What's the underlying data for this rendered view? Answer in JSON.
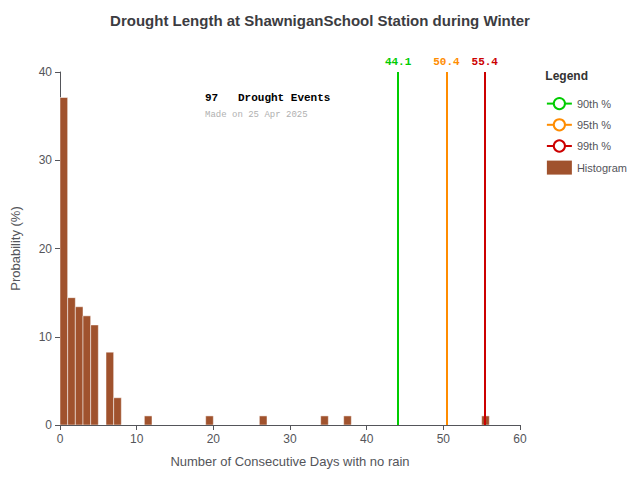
{
  "chart_data": {
    "type": "histogram",
    "title": "Drought Length at ShawniganSchool Station during Winter",
    "xlabel": "Number of Consecutive Days with no rain",
    "ylabel": "Probability (%)",
    "xlim": [
      0,
      60
    ],
    "ylim": [
      0,
      40
    ],
    "xticks": [
      0,
      10,
      20,
      30,
      40,
      50,
      60
    ],
    "yticks": [
      0,
      10,
      20,
      30,
      40
    ],
    "grid": false,
    "legend": "upper right",
    "legend_title": "Legend",
    "bins": [
      0,
      1,
      2,
      3,
      4,
      5,
      6,
      7,
      8,
      9,
      10,
      11,
      12,
      13,
      14,
      15,
      16,
      17,
      18,
      19,
      20,
      21,
      22,
      23,
      24,
      25,
      26,
      27,
      28,
      29,
      30,
      31,
      32,
      33,
      34,
      35,
      36,
      37,
      38,
      39,
      40,
      41,
      42,
      43,
      44,
      45,
      46,
      47,
      48,
      49,
      50,
      51,
      52,
      53,
      54,
      55,
      56,
      57,
      58,
      59,
      60
    ],
    "series": [
      {
        "name": "90th %",
        "type": "vline",
        "color": "#00CC00",
        "x": 44.1
      },
      {
        "name": "95th %",
        "type": "vline",
        "color": "#FF8C00",
        "x": 50.4
      },
      {
        "name": "99th %",
        "type": "vline",
        "color": "#CC0000",
        "x": 55.4
      },
      {
        "name": "Histogram",
        "type": "bar",
        "color": "#A0522D",
        "values": [
          37.11,
          14.43,
          13.4,
          12.37,
          11.34,
          0.0,
          8.25,
          3.09,
          0.0,
          0.0,
          0.0,
          1.03,
          0.0,
          0.0,
          0.0,
          0.0,
          0.0,
          0.0,
          0.0,
          1.03,
          0.0,
          0.0,
          0.0,
          0.0,
          0.0,
          0.0,
          1.03,
          0.0,
          0.0,
          0.0,
          0.0,
          0.0,
          0.0,
          0.0,
          1.03,
          0.0,
          0.0,
          1.03,
          0.0,
          0.0,
          0.0,
          0.0,
          0.0,
          0.0,
          0.0,
          0.0,
          0.0,
          0.0,
          0.0,
          0.0,
          0.0,
          0.0,
          0.0,
          0.0,
          0.0,
          1.03,
          0.0,
          0.0,
          0.0,
          0.0
        ]
      }
    ],
    "annotations": [
      "97   Drought Events",
      "Made on 25 Apr 2025"
    ]
  }
}
